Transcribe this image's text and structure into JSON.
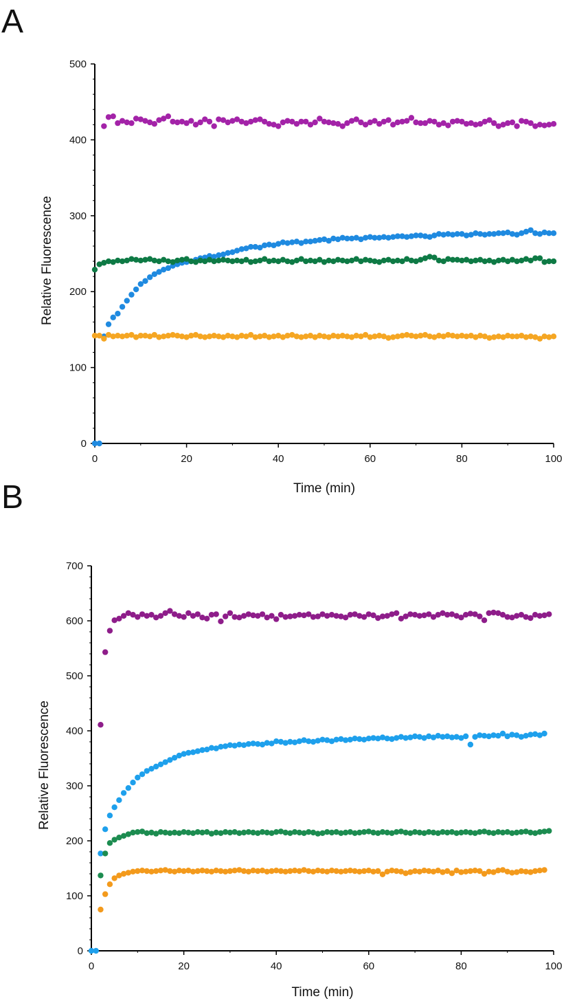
{
  "chart_data": [
    {
      "panel_label": "A",
      "type": "scatter",
      "xlabel": "Time (min)",
      "ylabel": "Relative Fluorescence",
      "xlim": [
        0,
        100
      ],
      "ylim": [
        0,
        500
      ],
      "x_ticks": [
        "0",
        "20",
        "40",
        "60",
        "80",
        "100"
      ],
      "y_ticks": [
        "0",
        "100",
        "200",
        "300",
        "400",
        "500"
      ],
      "series": [
        {
          "name": "magenta",
          "color": "#a323a8",
          "start": 2,
          "values": [
            418,
            430,
            431,
            422,
            425,
            423,
            422,
            428,
            427,
            425,
            423,
            421,
            426,
            428,
            431,
            424,
            423,
            424,
            422,
            425,
            420,
            423,
            427,
            424,
            418,
            427,
            426,
            423,
            425,
            427,
            424,
            422,
            424,
            426,
            427,
            424,
            421,
            420,
            418,
            423,
            425,
            424,
            421,
            424,
            424,
            420,
            423,
            428,
            424,
            423,
            422,
            421,
            418,
            422,
            425,
            427,
            423,
            420,
            423,
            425,
            421,
            424,
            426,
            420,
            423,
            424,
            425,
            429,
            423,
            422,
            422,
            425,
            424,
            420,
            422,
            419,
            424,
            425,
            424,
            421,
            422,
            420,
            421,
            424,
            426,
            422,
            418,
            420,
            422,
            423,
            418,
            425,
            424,
            422,
            418,
            420,
            419,
            420,
            421
          ]
        },
        {
          "name": "blue",
          "color": "#1f8ae0",
          "start": 0,
          "values": [
            0,
            0,
            141,
            157,
            166,
            171,
            180,
            188,
            196,
            203,
            210,
            214,
            219,
            223,
            226,
            229,
            231,
            234,
            236,
            238,
            239,
            240,
            242,
            244,
            245,
            247,
            246,
            248,
            249,
            251,
            252,
            254,
            256,
            257,
            259,
            259,
            258,
            261,
            262,
            261,
            263,
            265,
            264,
            265,
            266,
            264,
            266,
            266,
            267,
            268,
            269,
            267,
            270,
            269,
            271,
            270,
            270,
            271,
            269,
            271,
            272,
            271,
            271,
            272,
            271,
            272,
            273,
            273,
            272,
            273,
            274,
            274,
            273,
            272,
            274,
            276,
            275,
            276,
            275,
            276,
            276,
            274,
            275,
            277,
            276,
            275,
            276,
            276,
            277,
            277,
            278,
            276,
            275,
            277,
            279,
            281,
            277,
            276,
            278,
            277,
            277
          ]
        },
        {
          "name": "green",
          "color": "#0e7a45",
          "start": 0,
          "values": [
            229,
            236,
            238,
            240,
            239,
            241,
            240,
            241,
            243,
            242,
            241,
            242,
            243,
            241,
            240,
            242,
            240,
            239,
            241,
            242,
            243,
            240,
            239,
            241,
            240,
            242,
            240,
            241,
            242,
            241,
            240,
            241,
            240,
            242,
            239,
            240,
            241,
            243,
            240,
            241,
            240,
            242,
            240,
            239,
            241,
            243,
            240,
            241,
            240,
            242,
            239,
            241,
            240,
            242,
            241,
            240,
            241,
            243,
            240,
            242,
            241,
            240,
            239,
            241,
            242,
            240,
            241,
            240,
            243,
            241,
            240,
            242,
            244,
            246,
            245,
            241,
            240,
            243,
            242,
            242,
            241,
            242,
            240,
            241,
            242,
            240,
            241,
            239,
            241,
            242,
            240,
            242,
            240,
            241,
            243,
            241,
            244,
            244,
            239,
            240,
            240
          ]
        },
        {
          "name": "orange",
          "color": "#f5a623",
          "start": 0,
          "values": [
            142,
            142,
            138,
            143,
            141,
            142,
            141,
            142,
            143,
            140,
            142,
            142,
            141,
            143,
            140,
            141,
            142,
            143,
            142,
            141,
            140,
            142,
            143,
            141,
            140,
            141,
            142,
            141,
            140,
            142,
            141,
            140,
            142,
            141,
            143,
            140,
            141,
            142,
            140,
            141,
            142,
            140,
            142,
            143,
            141,
            140,
            141,
            142,
            140,
            142,
            141,
            140,
            142,
            141,
            142,
            141,
            140,
            142,
            141,
            143,
            140,
            141,
            142,
            141,
            139,
            140,
            141,
            142,
            143,
            142,
            141,
            142,
            143,
            141,
            140,
            142,
            141,
            143,
            142,
            141,
            142,
            141,
            142,
            140,
            142,
            141,
            139,
            140,
            141,
            140,
            142,
            141,
            141,
            142,
            140,
            141,
            140,
            138,
            141,
            140,
            141
          ]
        }
      ]
    },
    {
      "panel_label": "B",
      "type": "scatter",
      "xlabel": "Time (min)",
      "ylabel": "Relative Fluorescence",
      "xlim": [
        0,
        100
      ],
      "ylim": [
        0,
        700
      ],
      "x_ticks": [
        "0",
        "20",
        "40",
        "60",
        "80",
        "100"
      ],
      "y_ticks": [
        "0",
        "100",
        "200",
        "300",
        "400",
        "500",
        "600",
        "700"
      ],
      "series": [
        {
          "name": "purple",
          "color": "#8e1d8a",
          "start": 2,
          "values": [
            411,
            543,
            582,
            601,
            604,
            609,
            614,
            611,
            607,
            612,
            609,
            611,
            606,
            609,
            614,
            618,
            612,
            609,
            607,
            614,
            609,
            612,
            606,
            604,
            611,
            612,
            599,
            608,
            614,
            607,
            606,
            609,
            612,
            610,
            609,
            612,
            606,
            609,
            603,
            611,
            607,
            608,
            609,
            611,
            610,
            612,
            607,
            608,
            612,
            609,
            611,
            609,
            608,
            606,
            611,
            612,
            609,
            607,
            612,
            610,
            605,
            608,
            609,
            612,
            614,
            604,
            608,
            612,
            611,
            609,
            610,
            612,
            607,
            611,
            614,
            611,
            612,
            609,
            606,
            611,
            613,
            612,
            608,
            601,
            614,
            615,
            614,
            611,
            607,
            606,
            609,
            611,
            607,
            605,
            611,
            609,
            610,
            612
          ]
        },
        {
          "name": "light-blue",
          "color": "#1ea0ec",
          "start": 0,
          "values": [
            0,
            0,
            177,
            221,
            246,
            261,
            274,
            287,
            296,
            306,
            315,
            321,
            327,
            331,
            335,
            339,
            343,
            347,
            351,
            355,
            358,
            360,
            361,
            363,
            365,
            366,
            369,
            368,
            371,
            372,
            374,
            373,
            375,
            374,
            376,
            377,
            376,
            375,
            378,
            377,
            381,
            380,
            378,
            380,
            379,
            381,
            383,
            381,
            380,
            382,
            384,
            383,
            381,
            384,
            385,
            383,
            384,
            386,
            385,
            384,
            386,
            387,
            386,
            388,
            386,
            385,
            387,
            389,
            387,
            388,
            390,
            389,
            387,
            390,
            388,
            391,
            389,
            390,
            388,
            389,
            387,
            390,
            375,
            389,
            392,
            391,
            390,
            392,
            391,
            395,
            390,
            393,
            392,
            389,
            391,
            393,
            394,
            392,
            395
          ]
        },
        {
          "name": "green",
          "color": "#1c8c50",
          "start": 2,
          "values": [
            137,
            177,
            196,
            202,
            206,
            209,
            212,
            215,
            216,
            217,
            214,
            215,
            213,
            216,
            215,
            214,
            215,
            214,
            216,
            215,
            214,
            216,
            215,
            216,
            213,
            215,
            214,
            216,
            215,
            216,
            214,
            215,
            216,
            215,
            214,
            216,
            215,
            214,
            216,
            217,
            215,
            214,
            216,
            215,
            214,
            216,
            215,
            213,
            214,
            216,
            215,
            216,
            214,
            215,
            216,
            214,
            215,
            216,
            217,
            215,
            214,
            216,
            215,
            214,
            216,
            217,
            215,
            214,
            216,
            215,
            214,
            216,
            215,
            214,
            216,
            215,
            216,
            214,
            215,
            216,
            215,
            214,
            216,
            217,
            215,
            214,
            216,
            215,
            216,
            214,
            215,
            216,
            217,
            215,
            214,
            216,
            217,
            218
          ]
        },
        {
          "name": "orange",
          "color": "#f39a1c",
          "start": 2,
          "values": [
            75,
            103,
            121,
            132,
            137,
            140,
            142,
            144,
            145,
            146,
            145,
            144,
            145,
            146,
            147,
            145,
            144,
            146,
            145,
            146,
            144,
            145,
            146,
            145,
            144,
            146,
            145,
            144,
            145,
            146,
            147,
            145,
            144,
            146,
            145,
            146,
            144,
            145,
            146,
            145,
            144,
            145,
            146,
            145,
            147,
            145,
            144,
            146,
            145,
            144,
            146,
            145,
            144,
            145,
            146,
            145,
            144,
            145,
            146,
            144,
            145,
            139,
            144,
            146,
            145,
            144,
            141,
            143,
            145,
            144,
            146,
            145,
            144,
            146,
            143,
            145,
            141,
            146,
            143,
            144,
            145,
            146,
            145,
            140,
            144,
            143,
            146,
            147,
            144,
            142,
            143,
            145,
            144,
            143,
            145,
            146,
            147
          ]
        }
      ]
    }
  ]
}
